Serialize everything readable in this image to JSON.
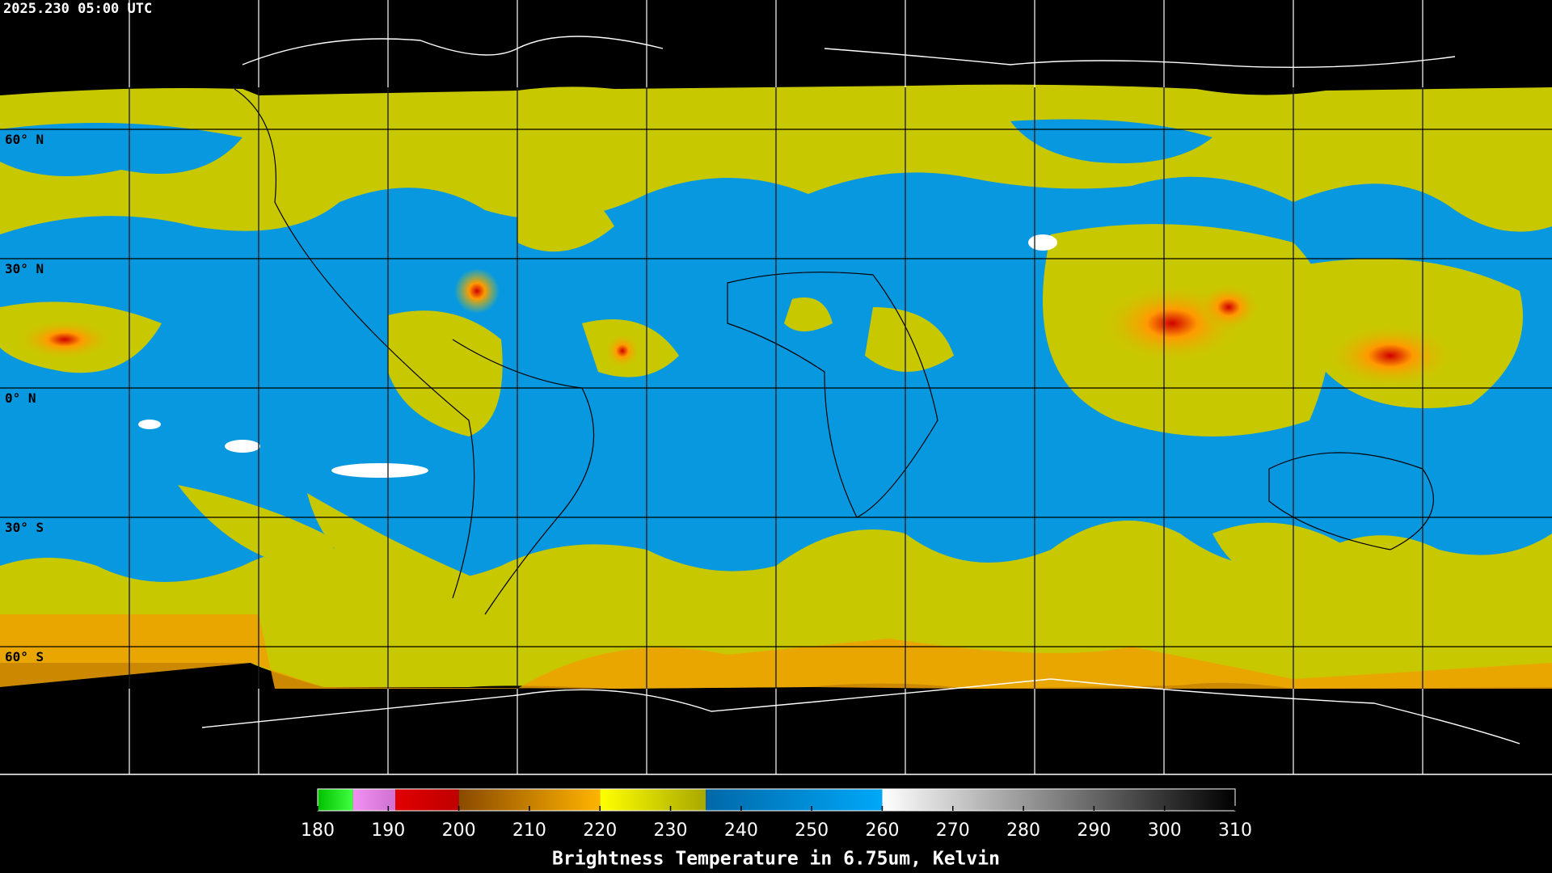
{
  "timestamp": "2025.230 05:00 UTC",
  "latitude_labels": [
    "60° N",
    "30° N",
    "0° N",
    "30° S",
    "60° S"
  ],
  "colorbar": {
    "title": "Brightness Temperature in 6.75um, Kelvin",
    "range": [
      180,
      310
    ],
    "ticks": [
      180,
      190,
      200,
      210,
      220,
      230,
      240,
      250,
      260,
      270,
      280,
      290,
      300,
      310
    ],
    "segments": [
      {
        "from": 180,
        "to": 185,
        "colors": [
          "#00c000",
          "#40ff40"
        ]
      },
      {
        "from": 185,
        "to": 191,
        "colors": [
          "#f090f0",
          "#d070d0"
        ]
      },
      {
        "from": 191,
        "to": 200,
        "colors": [
          "#e00000",
          "#c00000"
        ]
      },
      {
        "from": 200,
        "to": 220,
        "colors": [
          "#8a4a00",
          "#ffb400"
        ]
      },
      {
        "from": 220,
        "to": 235,
        "colors": [
          "#ffff00",
          "#a8a800"
        ]
      },
      {
        "from": 235,
        "to": 260,
        "colors": [
          "#0068a8",
          "#00a8f8"
        ]
      },
      {
        "from": 260,
        "to": 310,
        "colors": [
          "#ffffff",
          "#000000"
        ]
      }
    ]
  }
}
